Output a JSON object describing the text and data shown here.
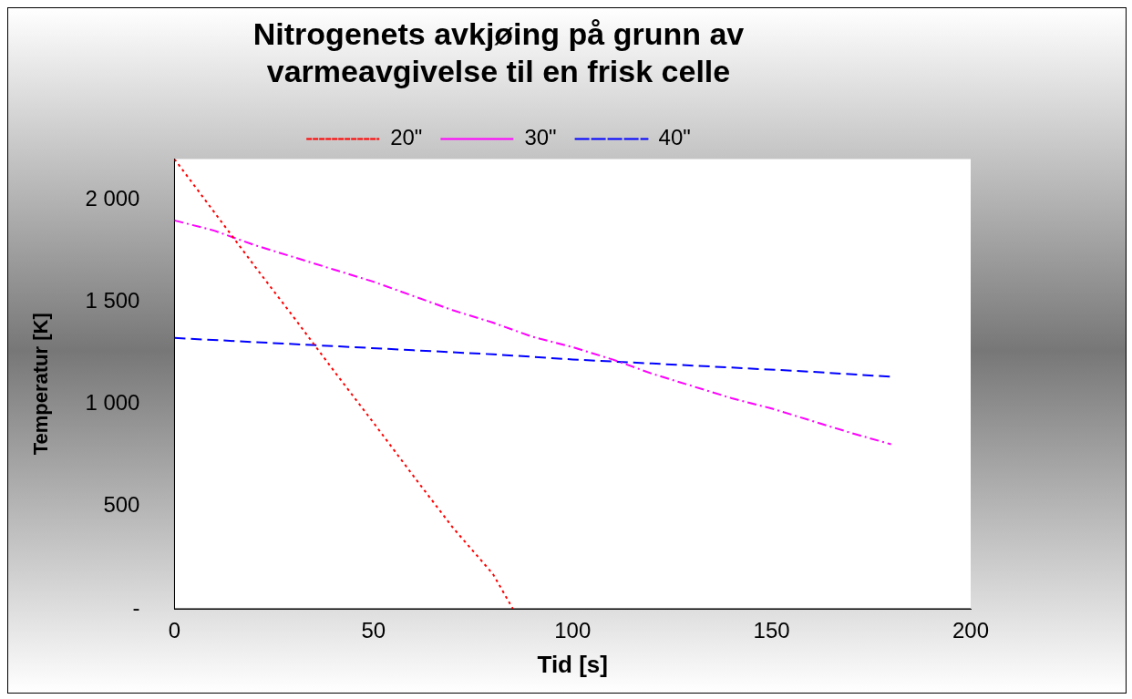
{
  "chart_data": {
    "type": "line",
    "title": [
      "Nitrogenets avkjøing på grunn av",
      "varmeavgivelse til en frisk celle"
    ],
    "xlabel": "Tid [s]",
    "ylabel": "Temperatur [K]",
    "xlim": [
      0,
      200
    ],
    "xticks": [
      0,
      50,
      100,
      150,
      200
    ],
    "ylim": [
      0,
      2200
    ],
    "yticks": [
      {
        "value": 0,
        "label": "-"
      },
      {
        "value": 500,
        "label": "500"
      },
      {
        "value": 1000,
        "label": "1 000"
      },
      {
        "value": 1500,
        "label": "1 500"
      },
      {
        "value": 2000,
        "label": "2 000"
      }
    ],
    "grid": false,
    "legend": "top",
    "marker": "none",
    "series": [
      {
        "name": "20\"",
        "color": "#ff0000",
        "line_style": "dotted",
        "x": [
          0,
          10,
          20,
          30,
          40,
          50,
          60,
          70,
          80,
          85
        ],
        "values": [
          2200,
          1940,
          1680,
          1425,
          1165,
          910,
          650,
          395,
          170,
          0
        ]
      },
      {
        "name": "30\"",
        "color": "#ff00ff",
        "line_style": "dashdot",
        "x": [
          0,
          10,
          20,
          30,
          40,
          50,
          60,
          70,
          80,
          90,
          100,
          110,
          120,
          130,
          140,
          150,
          160,
          170,
          180
        ],
        "values": [
          1900,
          1850,
          1780,
          1720,
          1660,
          1600,
          1530,
          1460,
          1400,
          1330,
          1280,
          1220,
          1150,
          1090,
          1030,
          980,
          920,
          860,
          805
        ]
      },
      {
        "name": "40\"",
        "color": "#0000ff",
        "line_style": "dashed",
        "x": [
          0,
          20,
          40,
          60,
          80,
          100,
          120,
          140,
          160,
          180
        ],
        "values": [
          1325,
          1305,
          1285,
          1265,
          1245,
          1220,
          1200,
          1180,
          1160,
          1135
        ]
      }
    ]
  }
}
